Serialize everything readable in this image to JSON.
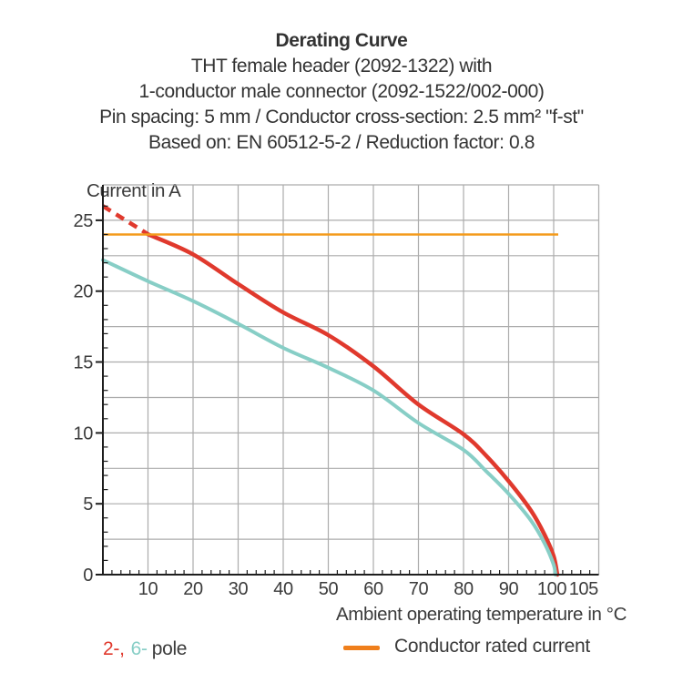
{
  "header": {
    "title": "Derating Curve",
    "subtitle_lines": [
      "THT female header (2092-1322) with",
      "1-conductor male connector (2092-1522/002-000)",
      "Pin spacing: 5 mm / Conductor cross-section: 2.5 mm² \"f-st\"",
      "Based on: EN 60512-5-2 / Reduction factor: 0.8"
    ]
  },
  "chart_data": {
    "type": "line",
    "title": "Derating Curve",
    "xlabel": "Ambient operating temperature in °C",
    "ylabel": "Current in A",
    "xlim": [
      0,
      110
    ],
    "ylim": [
      0,
      27.5
    ],
    "grid": true,
    "x_gridline_step": 10,
    "y_gridline_step": 2.5,
    "x_minor_tick_step": 2,
    "y_minor_tick_step": 1,
    "y_major_ticks": [
      {
        "value": 0,
        "label": "0"
      },
      {
        "value": 5,
        "label": "5"
      },
      {
        "value": 10,
        "label": "10"
      },
      {
        "value": 15,
        "label": "15"
      },
      {
        "value": 20,
        "label": "20"
      },
      {
        "value": 25,
        "label": "25"
      }
    ],
    "x_major_ticks": [
      {
        "value": 10,
        "label": "10",
        "dx": 0
      },
      {
        "value": 20,
        "label": "20",
        "dx": 0
      },
      {
        "value": 30,
        "label": "30",
        "dx": 0
      },
      {
        "value": 40,
        "label": "40",
        "dx": 0
      },
      {
        "value": 50,
        "label": "50",
        "dx": 0
      },
      {
        "value": 60,
        "label": "60",
        "dx": 0
      },
      {
        "value": 70,
        "label": "70",
        "dx": 0
      },
      {
        "value": 80,
        "label": "80",
        "dx": 0
      },
      {
        "value": 90,
        "label": "90",
        "dx": 0
      },
      {
        "value": 100,
        "label": "100",
        "dx": -2
      },
      {
        "value": 105,
        "label": "105",
        "dx": 8
      }
    ],
    "series": [
      {
        "name": "2-pole",
        "color": "#E0392D",
        "stroke_width": 4.5,
        "dashed_segment": [
          [
            0,
            26.0
          ],
          [
            10.1,
            24.0
          ]
        ],
        "points": [
          [
            10.1,
            24.0
          ],
          [
            20,
            22.6
          ],
          [
            30,
            20.5
          ],
          [
            40,
            18.5
          ],
          [
            50,
            16.9
          ],
          [
            60,
            14.7
          ],
          [
            70,
            12.0
          ],
          [
            80,
            9.9
          ],
          [
            85,
            8.4
          ],
          [
            90,
            6.6
          ],
          [
            95,
            4.5
          ],
          [
            98,
            2.8
          ],
          [
            100,
            1.3
          ],
          [
            100.8,
            0
          ]
        ]
      },
      {
        "name": "6-pole",
        "color": "#87CEC6",
        "stroke_width": 4,
        "points": [
          [
            0,
            22.2
          ],
          [
            10,
            20.7
          ],
          [
            20,
            19.3
          ],
          [
            30,
            17.7
          ],
          [
            40,
            16.0
          ],
          [
            50,
            14.6
          ],
          [
            60,
            13.0
          ],
          [
            70,
            10.7
          ],
          [
            80,
            8.8
          ],
          [
            85,
            7.3
          ],
          [
            90,
            5.7
          ],
          [
            95,
            3.8
          ],
          [
            98,
            2.2
          ],
          [
            100,
            0.7
          ],
          [
            100.4,
            0
          ]
        ]
      },
      {
        "name": "Conductor rated current",
        "type": "hline",
        "color": "#F49B1D",
        "stroke_width": 2.5,
        "value": 24,
        "x_range": [
          0,
          101
        ]
      }
    ],
    "legend_position": "bottom"
  },
  "legend": {
    "poles": [
      {
        "text": "2-,",
        "color": "#E0392D"
      },
      {
        "text": "6-",
        "color": "#87CEC6"
      },
      {
        "text": "pole",
        "color": "#3B3B3B"
      }
    ],
    "rated": {
      "label": "Conductor rated current",
      "swatch_color": "#EF7F1C"
    }
  },
  "colors": {
    "grid": "#ACACAC",
    "axis": "#1E1E1E",
    "text": "#3B3B3B",
    "background": "#FFFFFF"
  }
}
